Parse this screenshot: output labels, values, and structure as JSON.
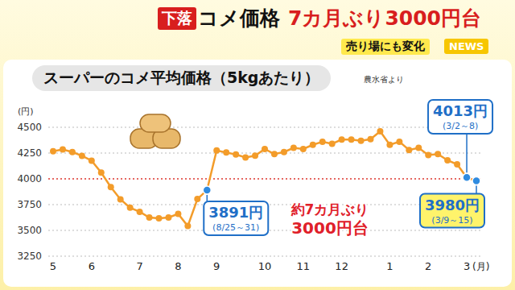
{
  "header": {
    "tag": "下落",
    "title": "コメ価格 7カ月ぶり3000円台",
    "subtitle": "売り場にも変化",
    "badge": "NEWS"
  },
  "chart_data": {
    "type": "line",
    "title": "スーパーのコメ平均価格（5kgあたり）",
    "source": "農水省より",
    "y_label": "(円)",
    "x_label": "(月)",
    "categories": [
      "5",
      null,
      null,
      null,
      "6",
      null,
      null,
      null,
      null,
      "7",
      null,
      null,
      null,
      "8",
      null,
      null,
      null,
      "9",
      null,
      null,
      null,
      null,
      "10",
      null,
      null,
      null,
      "11",
      null,
      null,
      null,
      "12",
      null,
      null,
      null,
      null,
      "1",
      null,
      null,
      null,
      "2",
      null,
      null,
      null,
      "3",
      null
    ],
    "values": [
      4268,
      4285,
      4260,
      4223,
      4176,
      4060,
      3920,
      3801,
      3720,
      3680,
      3625,
      3618,
      3625,
      3660,
      3542,
      3804,
      3891,
      4275,
      4255,
      4236,
      4208,
      4224,
      4290,
      4240,
      4260,
      4300,
      4290,
      4330,
      4360,
      4340,
      4380,
      4380,
      4370,
      4385,
      4460,
      4330,
      4360,
      4280,
      4300,
      4230,
      4240,
      4180,
      4140,
      4013,
      3980
    ],
    "color": "#f39c2a",
    "colors": [
      "#f39c2a",
      "#f39c2a",
      "#f39c2a",
      "#f39c2a",
      "#f39c2a",
      "#f39c2a",
      "#f39c2a",
      "#f39c2a",
      "#f39c2a",
      "#f39c2a",
      "#f39c2a",
      "#f39c2a",
      "#f39c2a",
      "#f39c2a",
      "#f39c2a",
      "#f39c2a",
      "#2f8be0",
      "#f39c2a",
      "#f39c2a",
      "#f39c2a",
      "#f39c2a",
      "#f39c2a",
      "#f39c2a",
      "#f39c2a",
      "#f39c2a",
      "#f39c2a",
      "#f39c2a",
      "#f39c2a",
      "#f39c2a",
      "#f39c2a",
      "#f39c2a",
      "#f39c2a",
      "#f39c2a",
      "#f39c2a",
      "#f39c2a",
      "#f39c2a",
      "#f39c2a",
      "#f39c2a",
      "#f39c2a",
      "#f39c2a",
      "#f39c2a",
      "#f39c2a",
      "#f39c2a",
      "#2f8be0",
      "#2f8be0"
    ],
    "marker": "circle",
    "ylim": [
      3250,
      4500
    ],
    "yticks": [
      3250,
      3500,
      3750,
      4000,
      4250,
      4500
    ],
    "grid": true,
    "reference_line": {
      "value": 4000,
      "color": "#e8413a"
    },
    "annotations": [
      {
        "text": "3891円",
        "subtext": "(8/25～31)",
        "point": 16
      },
      {
        "text": "4013円",
        "subtext": "(3/2～8)",
        "point": 43
      },
      {
        "text": "3980円",
        "subtext": "(3/9～15)",
        "point": 44
      },
      {
        "text": "約7カ月ぶり",
        "subtext": "3000円台"
      }
    ]
  }
}
